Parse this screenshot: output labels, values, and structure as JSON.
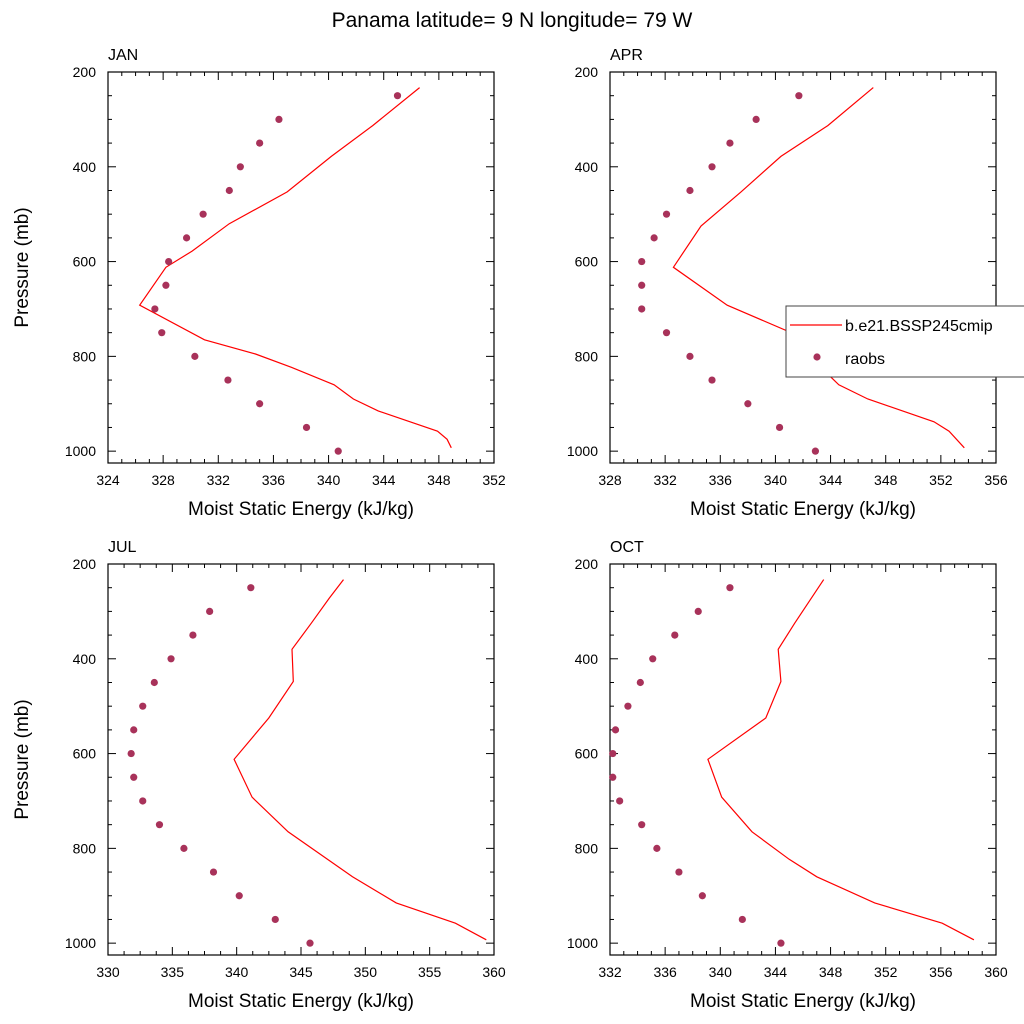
{
  "title": "Panama  latitude= 9 N longitude= 79 W",
  "colors": {
    "model_line": "#ff0000",
    "obs_marker": "#a8325a",
    "axis": "#000000"
  },
  "legend": {
    "placement": "right-middle of APR panel",
    "entries": [
      {
        "label": "b.e21.BSSP245cmip",
        "style": "line"
      },
      {
        "label": "raobs",
        "style": "marker"
      }
    ]
  },
  "chart_data": [
    {
      "type": "line+scatter",
      "panel": "JAN",
      "xlabel": "Moist Static Energy (kJ/kg)",
      "ylabel": "Pressure (mb)",
      "xlim": [
        324,
        352
      ],
      "xticks": [
        324,
        328,
        332,
        336,
        340,
        344,
        348,
        352
      ],
      "ylim": [
        200,
        1025
      ],
      "yticks": [
        200,
        400,
        600,
        800,
        1000
      ],
      "y_reversed": true,
      "model": [
        [
          348.9,
          993
        ],
        [
          348.6,
          975
        ],
        [
          347.9,
          958
        ],
        [
          343.6,
          915
        ],
        [
          341.8,
          890
        ],
        [
          340.4,
          860
        ],
        [
          337.3,
          823
        ],
        [
          334.7,
          795
        ],
        [
          331.0,
          765
        ],
        [
          326.3,
          692
        ],
        [
          328.2,
          612
        ],
        [
          330.1,
          578
        ],
        [
          332.8,
          520
        ],
        [
          337.0,
          453
        ],
        [
          340.2,
          378
        ],
        [
          343.2,
          313
        ],
        [
          346.6,
          233
        ]
      ],
      "obs": [
        [
          340.7,
          1000
        ],
        [
          338.4,
          950
        ],
        [
          335.0,
          900
        ],
        [
          332.7,
          850
        ],
        [
          330.3,
          800
        ],
        [
          327.9,
          750
        ],
        [
          327.4,
          700
        ],
        [
          328.2,
          650
        ],
        [
          328.4,
          600
        ],
        [
          329.7,
          550
        ],
        [
          330.9,
          500
        ],
        [
          332.8,
          450
        ],
        [
          333.6,
          400
        ],
        [
          335.0,
          350
        ],
        [
          336.4,
          300
        ],
        [
          345.0,
          250
        ]
      ]
    },
    {
      "type": "line+scatter",
      "panel": "APR",
      "xlabel": "Moist Static Energy (kJ/kg)",
      "ylabel": "",
      "xlim": [
        328,
        356
      ],
      "xticks": [
        328,
        332,
        336,
        340,
        344,
        348,
        352,
        356
      ],
      "ylim": [
        200,
        1025
      ],
      "yticks": [
        200,
        400,
        600,
        800,
        1000
      ],
      "y_reversed": true,
      "model": [
        [
          353.7,
          993
        ],
        [
          352.6,
          958
        ],
        [
          351.5,
          938
        ],
        [
          346.7,
          890
        ],
        [
          344.6,
          860
        ],
        [
          343.4,
          826
        ],
        [
          341.3,
          752
        ],
        [
          336.5,
          692
        ],
        [
          332.6,
          612
        ],
        [
          334.6,
          525
        ],
        [
          337.5,
          453
        ],
        [
          340.4,
          378
        ],
        [
          343.8,
          313
        ],
        [
          347.1,
          233
        ]
      ],
      "obs": [
        [
          342.9,
          1000
        ],
        [
          340.3,
          950
        ],
        [
          338.0,
          900
        ],
        [
          335.4,
          850
        ],
        [
          333.8,
          800
        ],
        [
          332.1,
          750
        ],
        [
          330.3,
          700
        ],
        [
          330.3,
          650
        ],
        [
          330.3,
          600
        ],
        [
          331.2,
          550
        ],
        [
          332.1,
          500
        ],
        [
          333.8,
          450
        ],
        [
          335.4,
          400
        ],
        [
          336.7,
          350
        ],
        [
          338.6,
          300
        ],
        [
          341.7,
          250
        ]
      ]
    },
    {
      "type": "line+scatter",
      "panel": "JUL",
      "xlabel": "Moist Static Energy (kJ/kg)",
      "ylabel": "Pressure (mb)",
      "xlim": [
        330,
        360
      ],
      "xticks": [
        330,
        335,
        340,
        345,
        350,
        355,
        360
      ],
      "ylim": [
        200,
        1025
      ],
      "yticks": [
        200,
        400,
        600,
        800,
        1000
      ],
      "y_reversed": true,
      "model": [
        [
          359.4,
          993
        ],
        [
          357.0,
          958
        ],
        [
          352.4,
          915
        ],
        [
          349.0,
          860
        ],
        [
          344.0,
          765
        ],
        [
          341.2,
          692
        ],
        [
          339.8,
          612
        ],
        [
          342.5,
          525
        ],
        [
          344.4,
          448
        ],
        [
          344.3,
          380
        ],
        [
          345.8,
          325
        ],
        [
          347.2,
          272
        ],
        [
          348.3,
          233
        ]
      ],
      "obs": [
        [
          345.7,
          1000
        ],
        [
          343.0,
          950
        ],
        [
          340.2,
          900
        ],
        [
          338.2,
          850
        ],
        [
          335.9,
          800
        ],
        [
          334.0,
          750
        ],
        [
          332.7,
          700
        ],
        [
          332.0,
          650
        ],
        [
          331.8,
          600
        ],
        [
          332.0,
          550
        ],
        [
          332.7,
          500
        ],
        [
          333.6,
          450
        ],
        [
          334.9,
          400
        ],
        [
          336.6,
          350
        ],
        [
          337.9,
          300
        ],
        [
          341.1,
          250
        ]
      ]
    },
    {
      "type": "line+scatter",
      "panel": "OCT",
      "xlabel": "Moist Static Energy (kJ/kg)",
      "ylabel": "",
      "xlim": [
        332,
        360
      ],
      "xticks": [
        332,
        336,
        340,
        344,
        348,
        352,
        356,
        360
      ],
      "ylim": [
        200,
        1025
      ],
      "yticks": [
        200,
        400,
        600,
        800,
        1000
      ],
      "y_reversed": true,
      "model": [
        [
          358.4,
          993
        ],
        [
          356.1,
          958
        ],
        [
          351.2,
          915
        ],
        [
          347.0,
          860
        ],
        [
          345.0,
          823
        ],
        [
          342.3,
          765
        ],
        [
          340.1,
          692
        ],
        [
          339.1,
          612
        ],
        [
          343.3,
          525
        ],
        [
          344.4,
          448
        ],
        [
          344.2,
          380
        ],
        [
          345.4,
          325
        ],
        [
          347.5,
          233
        ]
      ],
      "obs": [
        [
          344.4,
          1000
        ],
        [
          341.6,
          950
        ],
        [
          338.7,
          900
        ],
        [
          337.0,
          850
        ],
        [
          335.4,
          800
        ],
        [
          334.3,
          750
        ],
        [
          332.7,
          700
        ],
        [
          332.2,
          650
        ],
        [
          332.2,
          600
        ],
        [
          332.4,
          550
        ],
        [
          333.3,
          500
        ],
        [
          334.2,
          450
        ],
        [
          335.1,
          400
        ],
        [
          336.7,
          350
        ],
        [
          338.4,
          300
        ],
        [
          340.7,
          250
        ]
      ]
    }
  ]
}
